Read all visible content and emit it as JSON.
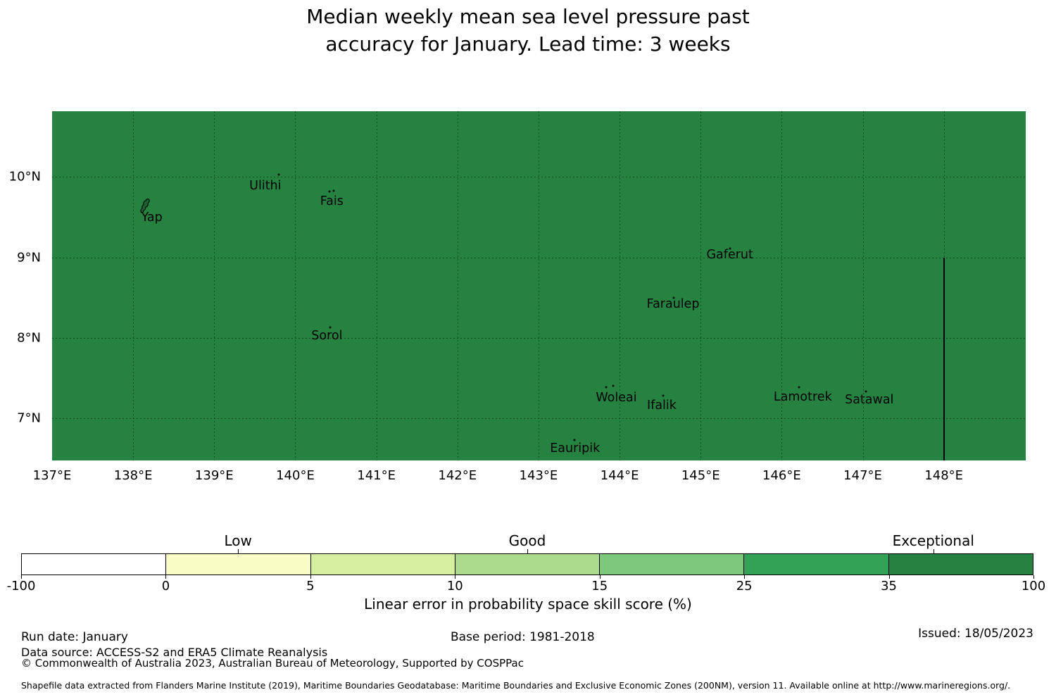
{
  "title": {
    "line1": "Median weekly mean sea level pressure past",
    "line2": "accuracy for January. Lead time: 3 weeks"
  },
  "chart_data": {
    "type": "heatmap",
    "subtype": "filled-category-map",
    "title": "Median weekly mean sea level pressure past accuracy for January. Lead time: 3 weeks",
    "xlim": [
      137.0,
      149.01
    ],
    "ylim": [
      6.47,
      10.82
    ],
    "grid": true,
    "x_ticks": [
      {
        "value": 137,
        "label": "137°E"
      },
      {
        "value": 138,
        "label": "138°E"
      },
      {
        "value": 139,
        "label": "139°E"
      },
      {
        "value": 140,
        "label": "140°E"
      },
      {
        "value": 141,
        "label": "141°E"
      },
      {
        "value": 142,
        "label": "142°E"
      },
      {
        "value": 143,
        "label": "143°E"
      },
      {
        "value": 144,
        "label": "144°E"
      },
      {
        "value": 145,
        "label": "145°E"
      },
      {
        "value": 146,
        "label": "146°E"
      },
      {
        "value": 147,
        "label": "147°E"
      },
      {
        "value": 148,
        "label": "148°E"
      }
    ],
    "y_ticks": [
      {
        "value": 10,
        "label": "10°N"
      },
      {
        "value": 9,
        "label": "9°N"
      },
      {
        "value": 8,
        "label": "8°N"
      },
      {
        "value": 7,
        "label": "7°N"
      }
    ],
    "map_fill": {
      "color": "#268240",
      "category": "Exceptional",
      "value_range": [
        35,
        100
      ]
    },
    "boundary_line": {
      "lon": 148.0,
      "lat_from": 9.0,
      "lat_to": 6.47
    },
    "islands": [
      {
        "name": "Yap",
        "lon": 138.23,
        "lat": 9.5,
        "marker": "outline",
        "marker_lon": 138.15,
        "marker_lat": 9.62,
        "dots": []
      },
      {
        "name": "Ulithi",
        "lon": 139.63,
        "lat": 9.89,
        "marker": "dots",
        "dots": [
          [
            139.8,
            10.03
          ]
        ]
      },
      {
        "name": "Fais",
        "lon": 140.45,
        "lat": 9.7,
        "marker": "dots",
        "dots": [
          [
            140.42,
            9.82
          ],
          [
            140.47,
            9.83
          ]
        ]
      },
      {
        "name": "Sorol",
        "lon": 140.39,
        "lat": 8.02,
        "marker": "dots",
        "dots": [
          [
            140.43,
            8.13
          ]
        ]
      },
      {
        "name": "Gaferut",
        "lon": 145.36,
        "lat": 9.03,
        "marker": "dots",
        "dots": [
          [
            145.36,
            9.11
          ]
        ]
      },
      {
        "name": "Faraulep",
        "lon": 144.66,
        "lat": 8.42,
        "marker": "dots",
        "dots": [
          [
            144.67,
            8.5
          ]
        ]
      },
      {
        "name": "Woleai",
        "lon": 143.96,
        "lat": 7.25,
        "marker": "dots",
        "dots": [
          [
            143.83,
            7.38
          ],
          [
            143.92,
            7.4
          ]
        ]
      },
      {
        "name": "Ifalik",
        "lon": 144.52,
        "lat": 7.15,
        "marker": "dots",
        "dots": [
          [
            144.54,
            7.28
          ]
        ]
      },
      {
        "name": "Lamotrek",
        "lon": 146.26,
        "lat": 7.26,
        "marker": "dots",
        "dots": [
          [
            146.21,
            7.38
          ]
        ]
      },
      {
        "name": "Satawal",
        "lon": 147.08,
        "lat": 7.22,
        "marker": "dots",
        "dots": [
          [
            147.04,
            7.33
          ]
        ]
      },
      {
        "name": "Eauripik",
        "lon": 143.45,
        "lat": 6.62,
        "marker": "dots",
        "dots": [
          [
            143.44,
            6.72
          ]
        ]
      }
    ],
    "colorbar": {
      "boundaries": [
        -100,
        0,
        5,
        10,
        15,
        25,
        35,
        100
      ],
      "colors": [
        "#ffffff",
        "#f9fcc4",
        "#d5ee9f",
        "#abdb8c",
        "#7cc87d",
        "#33a156",
        "#268240"
      ],
      "categories": [
        {
          "label": "Low",
          "value": 2.5
        },
        {
          "label": "Good",
          "value": 12.5
        },
        {
          "label": "Exceptional",
          "value": 55
        }
      ],
      "xlabel": "Linear error in probability space skill score (%)"
    }
  },
  "footer": {
    "run_date": "Run date: January",
    "base_period": "Base period: 1981-2018",
    "issued": "Issued: 18/05/2023",
    "data_source": "Data source: ACCESS-S2 and ERA5 Climate Reanalysis",
    "copyright": "© Commonwealth of Australia 2023, Australian Bureau of Meteorology, Supported by COSPPac",
    "shapefile_note": "Shapefile data extracted from Flanders Marine Institute (2019), Maritime Boundaries Geodatabase: Maritime Boundaries and Exclusive Economic Zones (200NM), version 11. Available online at http://www.marineregions.org/."
  }
}
